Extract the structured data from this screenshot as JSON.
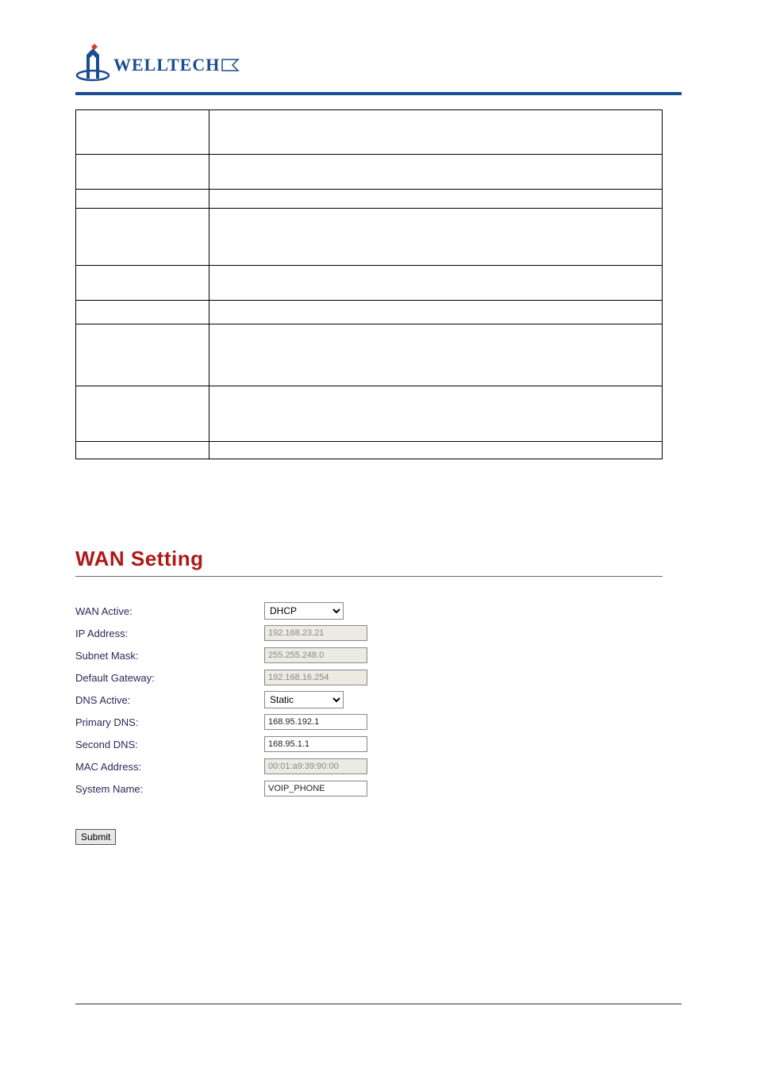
{
  "brand": {
    "name": "WELLTECH",
    "logo_text_color": "#1a4d8f",
    "logo_rule_color": "#1a4d8f"
  },
  "param_table": {
    "rows": [
      {
        "height_class": "h1",
        "label": "",
        "desc": ""
      },
      {
        "height_class": "h2",
        "label": "",
        "desc": ""
      },
      {
        "height_class": "h3",
        "label": "",
        "desc": ""
      },
      {
        "height_class": "h4",
        "label": "",
        "desc": ""
      },
      {
        "height_class": "h5",
        "label": "",
        "desc": ""
      },
      {
        "height_class": "h6",
        "label": "",
        "desc": ""
      },
      {
        "height_class": "h7",
        "label": "",
        "desc": ""
      },
      {
        "height_class": "h8",
        "label": "",
        "desc": ""
      },
      {
        "height_class": "h9",
        "label": "",
        "desc": ""
      }
    ]
  },
  "wan": {
    "title": "WAN Setting",
    "title_color": "#b01818",
    "fields": {
      "wan_active": {
        "label": "WAN Active:",
        "type": "select",
        "value": "DHCP",
        "options": [
          "DHCP"
        ]
      },
      "ip_address": {
        "label": "IP Address:",
        "type": "text",
        "value": "192.168.23.21",
        "readonly": true
      },
      "subnet_mask": {
        "label": "Subnet Mask:",
        "type": "text",
        "value": "255.255.248.0",
        "readonly": true
      },
      "default_gw": {
        "label": "Default Gateway:",
        "type": "text",
        "value": "192.168.16.254",
        "readonly": true
      },
      "dns_active": {
        "label": "DNS Active:",
        "type": "select",
        "value": "Static",
        "options": [
          "Static"
        ]
      },
      "primary_dns": {
        "label": "Primary DNS:",
        "type": "text",
        "value": "168.95.192.1",
        "readonly": false
      },
      "second_dns": {
        "label": "Second DNS:",
        "type": "text",
        "value": "168.95.1.1",
        "readonly": false
      },
      "mac_address": {
        "label": "MAC Address:",
        "type": "text",
        "value": "00:01:a9:39:90:00",
        "readonly": true
      },
      "system_name": {
        "label": "System Name:",
        "type": "text",
        "value": "VOIP_PHONE",
        "readonly": false
      }
    },
    "submit_label": "Submit"
  },
  "colors": {
    "rule": "#1a4d8f",
    "label_text": "#2a2a5a",
    "readonly_bg": "#ebebe4",
    "readonly_fg": "#888888"
  }
}
